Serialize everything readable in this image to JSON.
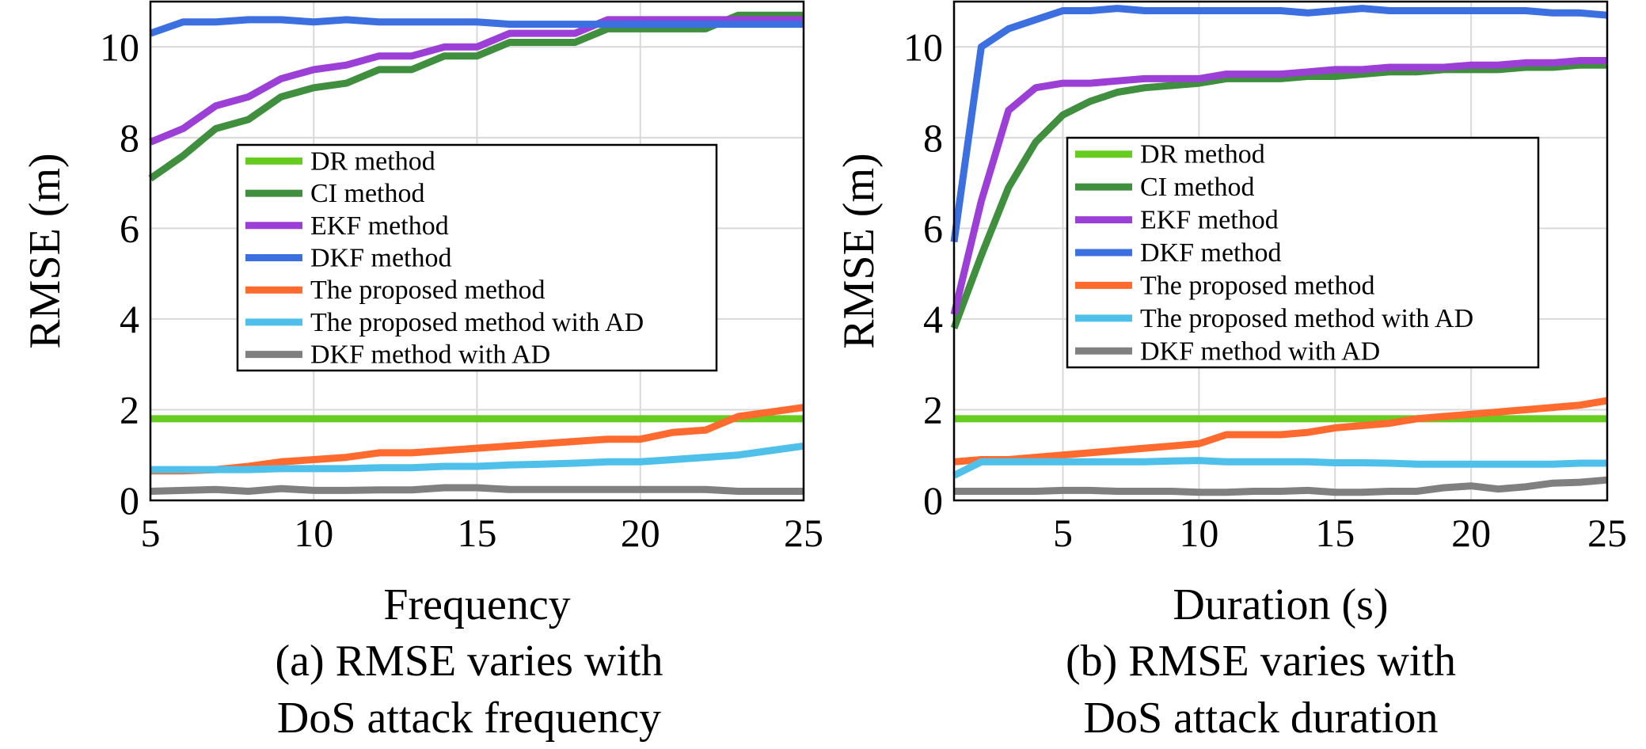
{
  "chart_data": [
    {
      "type": "line",
      "xlabel": "Frequency",
      "ylabel": "RMSE (m)",
      "caption": [
        "(a) RMSE varies with",
        "DoS attack frequency"
      ],
      "xlim": [
        5,
        25
      ],
      "ylim": [
        0,
        11
      ],
      "xticks": [
        5,
        10,
        15,
        20,
        25
      ],
      "yticks": [
        0,
        2,
        4,
        6,
        8,
        10
      ],
      "grid": true,
      "legend": "center-left",
      "x": [
        5,
        6,
        7,
        8,
        9,
        10,
        11,
        12,
        13,
        14,
        15,
        16,
        17,
        18,
        19,
        20,
        21,
        22,
        23,
        24,
        25
      ],
      "series": [
        {
          "name": "DR method",
          "color": "#66cc1f",
          "values": [
            1.8,
            1.8,
            1.8,
            1.8,
            1.8,
            1.8,
            1.8,
            1.8,
            1.8,
            1.8,
            1.8,
            1.8,
            1.8,
            1.8,
            1.8,
            1.8,
            1.8,
            1.8,
            1.8,
            1.8,
            1.8
          ]
        },
        {
          "name": "CI method",
          "color": "#3f8f3f",
          "values": [
            7.1,
            7.6,
            8.2,
            8.4,
            8.9,
            9.1,
            9.2,
            9.5,
            9.5,
            9.8,
            9.8,
            10.1,
            10.1,
            10.1,
            10.4,
            10.4,
            10.4,
            10.4,
            10.7,
            10.7,
            10.7
          ]
        },
        {
          "name": "EKF method",
          "color": "#9b3fd6",
          "values": [
            7.9,
            8.2,
            8.7,
            8.9,
            9.3,
            9.5,
            9.6,
            9.8,
            9.8,
            10.0,
            10.0,
            10.3,
            10.3,
            10.3,
            10.6,
            10.6,
            10.6,
            10.6,
            10.6,
            10.6,
            10.6
          ]
        },
        {
          "name": "DKF method",
          "color": "#3c6fe0",
          "values": [
            10.3,
            10.55,
            10.55,
            10.6,
            10.6,
            10.55,
            10.6,
            10.55,
            10.55,
            10.55,
            10.55,
            10.5,
            10.5,
            10.5,
            10.5,
            10.5,
            10.5,
            10.5,
            10.5,
            10.5,
            10.5
          ]
        },
        {
          "name": "The proposed method",
          "color": "#ff6a2e",
          "values": [
            0.65,
            0.65,
            0.68,
            0.75,
            0.85,
            0.9,
            0.95,
            1.05,
            1.05,
            1.1,
            1.15,
            1.2,
            1.25,
            1.3,
            1.35,
            1.35,
            1.5,
            1.55,
            1.85,
            1.95,
            2.05
          ]
        },
        {
          "name": "The proposed method with AD",
          "color": "#4ec0ea",
          "values": [
            0.68,
            0.68,
            0.68,
            0.68,
            0.7,
            0.7,
            0.7,
            0.72,
            0.72,
            0.75,
            0.75,
            0.78,
            0.8,
            0.82,
            0.85,
            0.85,
            0.9,
            0.95,
            1.0,
            1.1,
            1.2
          ]
        },
        {
          "name": "DKF method with AD",
          "color": "#808080",
          "values": [
            0.2,
            0.22,
            0.24,
            0.2,
            0.26,
            0.22,
            0.22,
            0.23,
            0.23,
            0.28,
            0.28,
            0.24,
            0.24,
            0.24,
            0.24,
            0.24,
            0.24,
            0.24,
            0.2,
            0.2,
            0.2
          ]
        }
      ]
    },
    {
      "type": "line",
      "xlabel": "Duration (s)",
      "ylabel": "RMSE (m)",
      "caption": [
        "(b) RMSE varies with",
        "DoS attack duration"
      ],
      "xlim": [
        1,
        25
      ],
      "ylim": [
        0,
        11
      ],
      "xticks": [
        5,
        10,
        15,
        20,
        25
      ],
      "yticks": [
        0,
        2,
        4,
        6,
        8,
        10
      ],
      "grid": true,
      "legend": "center",
      "x": [
        1,
        2,
        3,
        4,
        5,
        6,
        7,
        8,
        9,
        10,
        11,
        12,
        13,
        14,
        15,
        16,
        17,
        18,
        19,
        20,
        21,
        22,
        23,
        24,
        25
      ],
      "series": [
        {
          "name": "DR method",
          "color": "#66cc1f",
          "values": [
            1.8,
            1.8,
            1.8,
            1.8,
            1.8,
            1.8,
            1.8,
            1.8,
            1.8,
            1.8,
            1.8,
            1.8,
            1.8,
            1.8,
            1.8,
            1.8,
            1.8,
            1.8,
            1.8,
            1.8,
            1.8,
            1.8,
            1.8,
            1.8,
            1.8
          ]
        },
        {
          "name": "CI method",
          "color": "#3f8f3f",
          "values": [
            3.8,
            5.4,
            6.9,
            7.9,
            8.5,
            8.8,
            9.0,
            9.1,
            9.15,
            9.2,
            9.3,
            9.3,
            9.3,
            9.35,
            9.35,
            9.4,
            9.45,
            9.45,
            9.5,
            9.5,
            9.5,
            9.55,
            9.55,
            9.6,
            9.6
          ]
        },
        {
          "name": "EKF method",
          "color": "#9b3fd6",
          "values": [
            4.1,
            6.6,
            8.6,
            9.1,
            9.2,
            9.2,
            9.25,
            9.3,
            9.3,
            9.3,
            9.4,
            9.4,
            9.4,
            9.45,
            9.5,
            9.5,
            9.55,
            9.55,
            9.55,
            9.6,
            9.6,
            9.65,
            9.65,
            9.7,
            9.7
          ]
        },
        {
          "name": "DKF method",
          "color": "#3c6fe0",
          "values": [
            5.7,
            10.0,
            10.4,
            10.6,
            10.8,
            10.8,
            10.85,
            10.8,
            10.8,
            10.8,
            10.8,
            10.8,
            10.8,
            10.75,
            10.8,
            10.85,
            10.8,
            10.8,
            10.8,
            10.8,
            10.8,
            10.8,
            10.75,
            10.75,
            10.7
          ]
        },
        {
          "name": "The proposed method",
          "color": "#ff6a2e",
          "values": [
            0.85,
            0.9,
            0.9,
            0.95,
            1.0,
            1.05,
            1.1,
            1.15,
            1.2,
            1.25,
            1.45,
            1.45,
            1.45,
            1.5,
            1.6,
            1.65,
            1.7,
            1.8,
            1.85,
            1.9,
            1.95,
            2.0,
            2.05,
            2.1,
            2.2
          ]
        },
        {
          "name": "The proposed method with AD",
          "color": "#4ec0ea",
          "values": [
            0.55,
            0.85,
            0.85,
            0.85,
            0.85,
            0.85,
            0.85,
            0.85,
            0.87,
            0.88,
            0.85,
            0.85,
            0.85,
            0.85,
            0.83,
            0.83,
            0.82,
            0.8,
            0.8,
            0.8,
            0.8,
            0.8,
            0.8,
            0.82,
            0.82
          ]
        },
        {
          "name": "DKF method with AD",
          "color": "#808080",
          "values": [
            0.2,
            0.2,
            0.2,
            0.2,
            0.22,
            0.22,
            0.2,
            0.2,
            0.2,
            0.18,
            0.18,
            0.2,
            0.2,
            0.22,
            0.18,
            0.18,
            0.2,
            0.2,
            0.28,
            0.32,
            0.25,
            0.3,
            0.38,
            0.4,
            0.45
          ]
        }
      ]
    }
  ]
}
